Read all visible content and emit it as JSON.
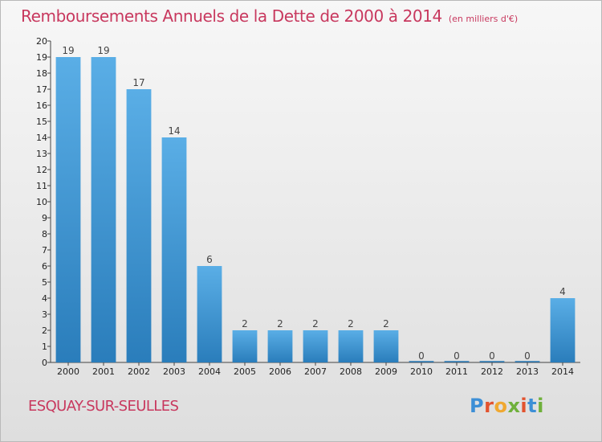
{
  "header": {
    "title": "Remboursements Annuels de la Dette de 2000 à 2014",
    "subtitle": "(en milliers d'€)"
  },
  "footer": {
    "commune": "ESQUAY-SUR-SEULLES",
    "logo_letters": [
      "P",
      "r",
      "o",
      "x",
      "i",
      "t",
      "i"
    ]
  },
  "colors": {
    "title": "#c8385e",
    "bar_top": "#5aaee6",
    "bar_bottom": "#2a7dbb",
    "logo": [
      "#3d8fd6",
      "#e2532f",
      "#f0a830",
      "#6fb03b",
      "#e2532f",
      "#3d8fd6",
      "#6fb03b"
    ]
  },
  "chart_data": {
    "type": "bar",
    "title": "Remboursements Annuels de la Dette de 2000 à 2014",
    "subtitle": "(en milliers d'€)",
    "categories": [
      "2000",
      "2001",
      "2002",
      "2003",
      "2004",
      "2005",
      "2006",
      "2007",
      "2008",
      "2009",
      "2010",
      "2011",
      "2012",
      "2013",
      "2014"
    ],
    "values": [
      19,
      19,
      17,
      14,
      6,
      2,
      2,
      2,
      2,
      2,
      0,
      0,
      0,
      0,
      4
    ],
    "data_labels": [
      "19",
      "19",
      "17",
      "14",
      "6",
      "2",
      "2",
      "2",
      "2",
      "2",
      "0",
      "0",
      "0",
      "0",
      "4"
    ],
    "yticks": [
      "0",
      "1",
      "2",
      "3",
      "4",
      "5",
      "6",
      "7",
      "8",
      "9",
      "10",
      "11",
      "12",
      "13",
      "14",
      "15",
      "16",
      "17",
      "18",
      "19",
      "20"
    ],
    "ylim": [
      0,
      20
    ],
    "xlabel": "",
    "ylabel": "",
    "grid": false,
    "legend": "none"
  }
}
